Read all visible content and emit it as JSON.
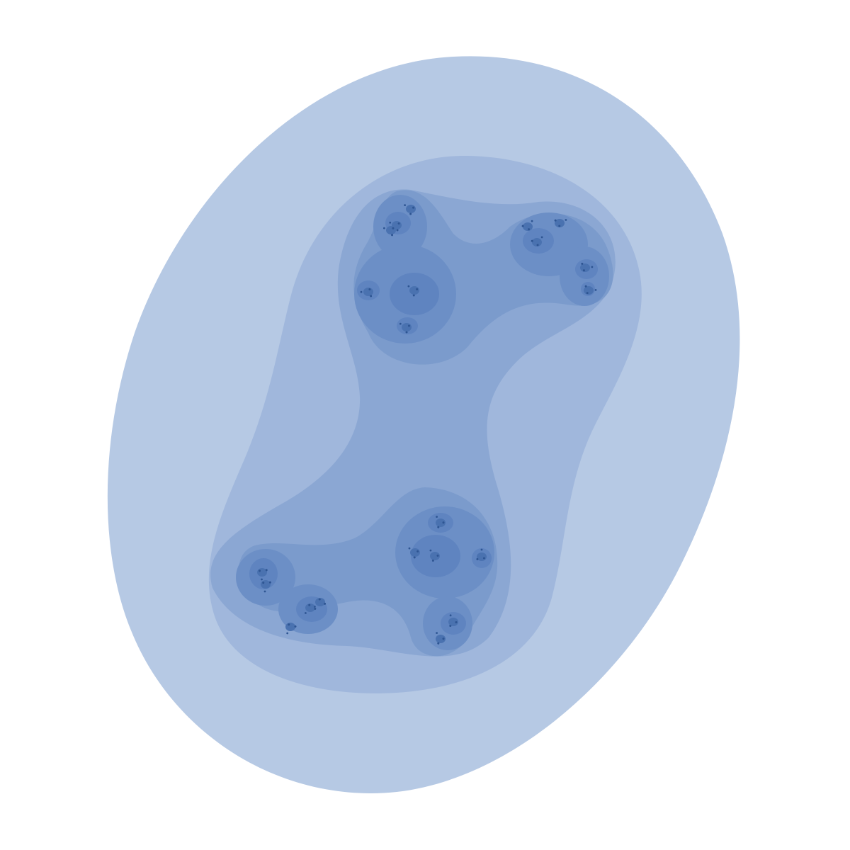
{
  "image": {
    "subject": "julia-set-level-sets",
    "palette": {
      "background": "#ffffff",
      "level_1": "#b6c9e4",
      "level_2": "#a0b7dc",
      "level_3": "#8ba7d3",
      "level_4": "#7b9bcc",
      "level_5": "#6c8fc6",
      "level_6": "#5f84c0",
      "core": "#4a72b0",
      "dot": "#2e5592"
    }
  }
}
